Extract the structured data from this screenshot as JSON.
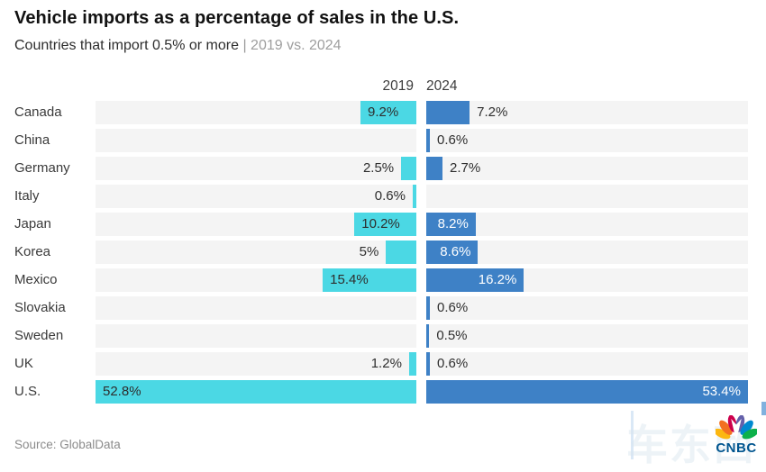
{
  "header": {
    "title": "Vehicle imports as a percentage of sales in the U.S.",
    "subtitle_main": "Countries that import 0.5% or more",
    "subtitle_divider": " | ",
    "subtitle_accent": "2019 vs. 2024"
  },
  "columns": {
    "left_label": "2019",
    "right_label": "2024"
  },
  "footer": {
    "source": "Source: GlobalData",
    "cnbc_wordmark": "CNBC",
    "watermark_text": "车东西"
  },
  "colors": {
    "bar_2019": "#4BD8E4",
    "bar_2024": "#3E81C6",
    "track": "#F4F4F4",
    "value_dark": "#2E2E2E",
    "value_light": "#FFFFFF",
    "cnbc_wordmark": "#00558F",
    "cnbc_peacock": [
      "#FCB711",
      "#F37021",
      "#CC004C",
      "#6460AA",
      "#0089D0",
      "#0DB14B"
    ]
  },
  "chart_data": {
    "type": "bar",
    "orientation": "horizontal-diverging",
    "title": "Vehicle imports as a percentage of sales in the U.S.",
    "subtitle": "Countries that import 0.5% or more | 2019 vs. 2024",
    "source": "Source: GlobalData",
    "unit": "%",
    "categories": [
      "Canada",
      "China",
      "Germany",
      "Italy",
      "Japan",
      "Korea",
      "Mexico",
      "Slovakia",
      "Sweden",
      "UK",
      "U.S."
    ],
    "series": [
      {
        "name": "2019",
        "values": [
          9.2,
          null,
          2.5,
          0.6,
          10.2,
          5,
          15.4,
          null,
          null,
          1.2,
          52.8
        ]
      },
      {
        "name": "2024",
        "values": [
          7.2,
          0.6,
          2.7,
          null,
          8.2,
          8.6,
          16.2,
          0.6,
          0.5,
          0.6,
          53.4
        ]
      }
    ],
    "axis_max_2019": 52.8,
    "axis_max_2024": 53.4,
    "legend_position": "column-headers",
    "grid": false
  }
}
